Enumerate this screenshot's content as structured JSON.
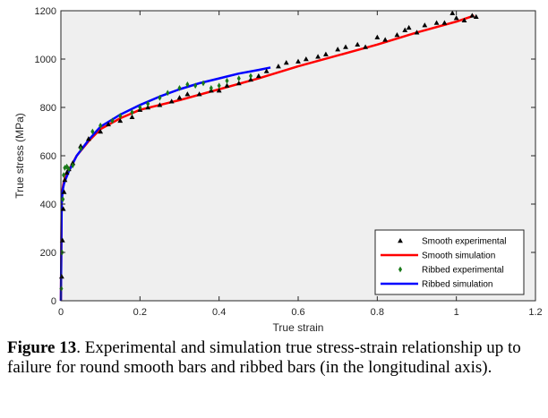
{
  "caption": {
    "label": "Figure 13",
    "text": ". Experimental and simulation true stress-strain relationship up to failure for round smooth bars and ribbed bars (in the longitudinal axis)."
  },
  "chart_data": {
    "type": "scatter",
    "xlabel": "True strain",
    "ylabel": "True stress (MPa)",
    "xlim": [
      0,
      1.2
    ],
    "ylim": [
      0,
      1200
    ],
    "xticks": [
      0,
      0.2,
      0.4,
      0.6,
      0.8,
      1,
      1.2
    ],
    "xtick_labels": [
      "0",
      "0.2",
      "0.4",
      "0.6",
      "0.8",
      "1",
      "1.2"
    ],
    "yticks": [
      0,
      200,
      400,
      600,
      800,
      1000,
      1200
    ],
    "ytick_labels": [
      "0",
      "200",
      "400",
      "600",
      "800",
      "1000",
      "1200"
    ],
    "grid": false,
    "legend_position": "bottom-right",
    "series": [
      {
        "name": "Smooth experimental",
        "kind": "markers",
        "marker": "triangle",
        "color": "#000000",
        "x": [
          0.002,
          0.004,
          0.006,
          0.008,
          0.01,
          0.015,
          0.02,
          0.03,
          0.05,
          0.07,
          0.1,
          0.12,
          0.15,
          0.18,
          0.2,
          0.22,
          0.25,
          0.28,
          0.3,
          0.32,
          0.35,
          0.38,
          0.4,
          0.42,
          0.45,
          0.48,
          0.5,
          0.52,
          0.55,
          0.57,
          0.6,
          0.62,
          0.65,
          0.67,
          0.7,
          0.72,
          0.75,
          0.77,
          0.8,
          0.82,
          0.85,
          0.87,
          0.88,
          0.9,
          0.92,
          0.95,
          0.97,
          0.99,
          1.0,
          1.02,
          1.04,
          1.05
        ],
        "y": [
          100,
          250,
          380,
          450,
          500,
          530,
          545,
          570,
          640,
          670,
          700,
          730,
          745,
          760,
          790,
          800,
          810,
          825,
          840,
          855,
          855,
          870,
          870,
          890,
          900,
          915,
          930,
          950,
          970,
          985,
          990,
          1000,
          1010,
          1020,
          1040,
          1050,
          1060,
          1050,
          1090,
          1080,
          1100,
          1120,
          1130,
          1110,
          1140,
          1150,
          1150,
          1190,
          1170,
          1160,
          1180,
          1175
        ]
      },
      {
        "name": "Smooth simulation",
        "kind": "line",
        "color": "#ff0000",
        "x": [
          0,
          0.002,
          0.004,
          0.006,
          0.008,
          0.01,
          0.02,
          0.04,
          0.07,
          0.1,
          0.15,
          0.2,
          0.3,
          0.4,
          0.5,
          0.6,
          0.7,
          0.8,
          0.9,
          1.0,
          1.045
        ],
        "y": [
          0,
          420,
          460,
          480,
          495,
          505,
          540,
          600,
          660,
          710,
          755,
          790,
          830,
          875,
          920,
          970,
          1015,
          1060,
          1110,
          1155,
          1180
        ]
      },
      {
        "name": "Ribbed experimental",
        "kind": "markers",
        "marker": "diamond",
        "color": "#1a7a1a",
        "x": [
          0.001,
          0.003,
          0.005,
          0.007,
          0.01,
          0.015,
          0.02,
          0.03,
          0.05,
          0.08,
          0.1,
          0.13,
          0.15,
          0.18,
          0.2,
          0.22,
          0.25,
          0.27,
          0.3,
          0.32,
          0.34,
          0.36,
          0.38,
          0.4,
          0.42,
          0.45,
          0.48
        ],
        "y": [
          50,
          200,
          420,
          520,
          550,
          555,
          545,
          560,
          630,
          700,
          725,
          745,
          765,
          780,
          800,
          815,
          840,
          860,
          880,
          895,
          890,
          900,
          880,
          890,
          910,
          920,
          930
        ]
      },
      {
        "name": "Ribbed simulation",
        "kind": "line",
        "color": "#0000ff",
        "x": [
          0,
          0.002,
          0.004,
          0.006,
          0.008,
          0.01,
          0.02,
          0.04,
          0.07,
          0.1,
          0.15,
          0.2,
          0.25,
          0.3,
          0.35,
          0.4,
          0.45,
          0.5,
          0.53
        ],
        "y": [
          0,
          400,
          450,
          470,
          485,
          495,
          535,
          600,
          665,
          720,
          770,
          810,
          845,
          875,
          900,
          920,
          940,
          955,
          965
        ]
      }
    ]
  }
}
